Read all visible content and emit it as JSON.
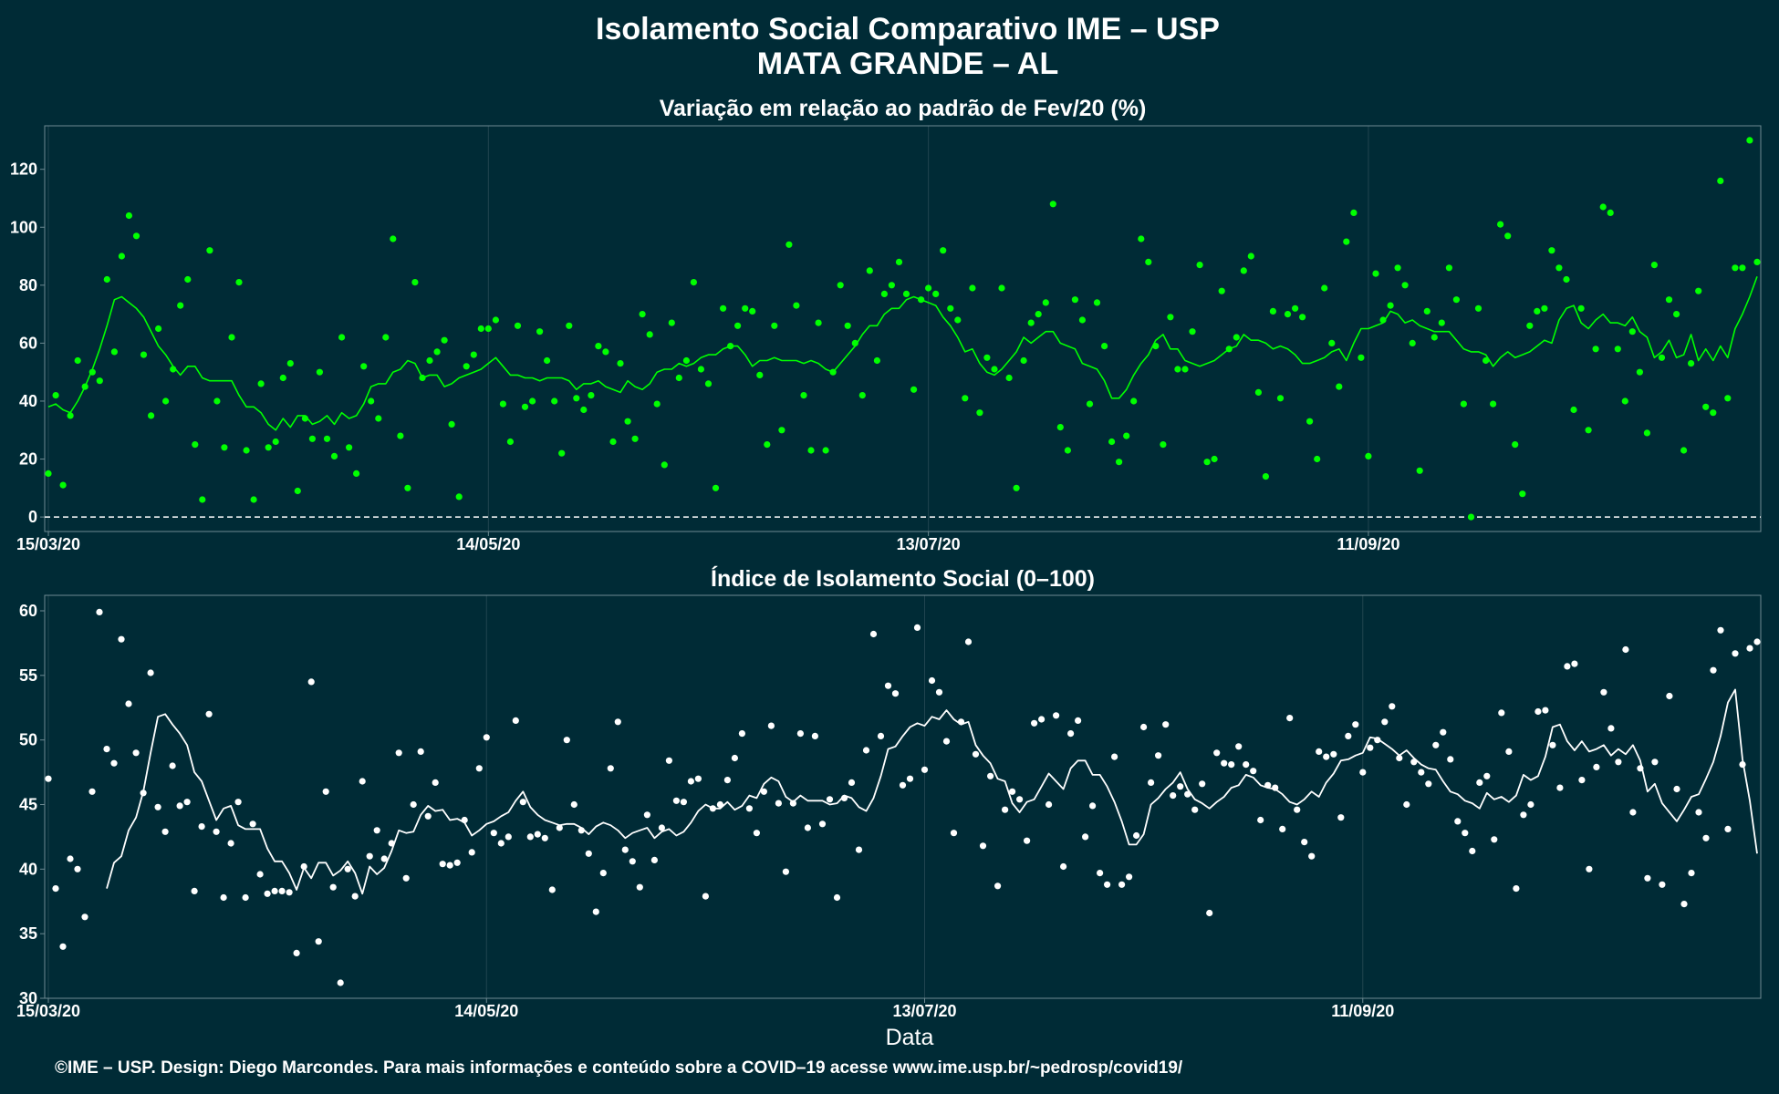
{
  "title": "Isolamento Social Comparativo IME – USP",
  "subtitle": "MATA GRANDE – AL",
  "footer": "©IME – USP. Design: Diego Marcondes. Para mais informações e conteúdo sobre a COVID–19 acesse www.ime.usp.br/~pedrosp/covid19/",
  "colors": {
    "background": "#002b36",
    "top_series": "#00ff00",
    "bottom_series": "#ffffff",
    "grid": "#214550",
    "frame": "#6e8a92"
  },
  "chart_data": [
    {
      "type": "scatter",
      "title": "Variação em relação ao padrão de Fev/20 (%)",
      "xlabel": "",
      "ylabel": "",
      "x_ticks": [
        "15/03/20",
        "14/05/20",
        "13/07/20",
        "11/09/20"
      ],
      "y_ticks": [
        0,
        20,
        40,
        60,
        80,
        100,
        120
      ],
      "ylim": [
        -5,
        135
      ],
      "reference_line": 0,
      "x_start": "2020-03-15",
      "series": [
        {
          "style": "points",
          "values": [
            15,
            42,
            11,
            35,
            54,
            45,
            50,
            47,
            82,
            57,
            90,
            104,
            97,
            56,
            35,
            65,
            40,
            51,
            73,
            82,
            25,
            6,
            92,
            40,
            24,
            62,
            81,
            23,
            6,
            46,
            24,
            26,
            48,
            53,
            9,
            34,
            27,
            50,
            27,
            21,
            62,
            24,
            15,
            52,
            40,
            34,
            62,
            96,
            28,
            10,
            81,
            48,
            54,
            57,
            61,
            32,
            7,
            52,
            56,
            65,
            65,
            68,
            39,
            26,
            66,
            38,
            40,
            64,
            54,
            40,
            22,
            66,
            41,
            37,
            42,
            59,
            57,
            26,
            53,
            33,
            27,
            70,
            63,
            39,
            18,
            67,
            48,
            54,
            81,
            51,
            46,
            10,
            72,
            59,
            66,
            72,
            71,
            49,
            25,
            66,
            30,
            94,
            73,
            42,
            23,
            67,
            23,
            50,
            80,
            66,
            60,
            42,
            85,
            54,
            77,
            80,
            88,
            77,
            44,
            75,
            79,
            77,
            92,
            72,
            68,
            41,
            79,
            36,
            55,
            51,
            79,
            48,
            10,
            54,
            67,
            70,
            74,
            108,
            31,
            23,
            75,
            68,
            39,
            74,
            59,
            26,
            19,
            28,
            40,
            96,
            88,
            59,
            25,
            69,
            51,
            51,
            64,
            87,
            19,
            20,
            78,
            58,
            62,
            85,
            90,
            43,
            14,
            71,
            41,
            70,
            72,
            69,
            33,
            20,
            79,
            60,
            45,
            95,
            105,
            55,
            21,
            84,
            68,
            73,
            86,
            80,
            60,
            16,
            71,
            62,
            67,
            86,
            75,
            39,
            0,
            72,
            54,
            39,
            101,
            97,
            25,
            8,
            66,
            71,
            72,
            92,
            86,
            82,
            37,
            72,
            30,
            58,
            107,
            105,
            58,
            40,
            64,
            50,
            29,
            87,
            55,
            75,
            70,
            23,
            53,
            78,
            38,
            36,
            116,
            41,
            86,
            86,
            130,
            88
          ],
          "point_gaps_after_index": []
        },
        {
          "style": "line",
          "values": [
            38,
            39,
            37,
            36,
            40,
            45,
            51,
            58,
            66,
            75,
            76,
            74,
            72,
            69,
            64,
            59,
            56,
            52,
            49,
            52,
            52,
            48,
            47,
            47,
            47,
            47,
            42,
            38,
            38,
            36,
            32,
            30,
            34,
            31,
            35,
            35,
            32,
            33,
            35,
            32,
            36,
            34,
            35,
            39,
            45,
            46,
            46,
            50,
            51,
            54,
            53,
            48,
            49,
            49,
            45,
            46,
            48,
            49,
            50,
            51,
            53,
            55,
            52,
            49,
            49,
            48,
            48,
            47,
            48,
            48,
            48,
            47,
            44,
            46,
            46,
            47,
            45,
            44,
            43,
            47,
            45,
            44,
            46,
            50,
            51,
            51,
            53,
            52,
            53,
            55,
            56,
            56,
            58,
            59,
            59,
            56,
            52,
            54,
            54,
            55,
            54,
            54,
            54,
            53,
            54,
            53,
            51,
            50,
            53,
            56,
            59,
            63,
            66,
            66,
            70,
            72,
            72,
            75,
            76,
            75,
            74,
            73,
            69,
            66,
            62,
            57,
            58,
            53,
            50,
            49,
            51,
            54,
            57,
            62,
            60,
            62,
            64,
            64,
            60,
            59,
            58,
            53,
            52,
            51,
            47,
            41,
            41,
            44,
            49,
            53,
            56,
            61,
            63,
            58,
            58,
            54,
            53,
            52,
            53,
            54,
            56,
            58,
            59,
            63,
            61,
            61,
            60,
            58,
            59,
            58,
            56,
            53,
            53,
            54,
            55,
            57,
            58,
            54,
            60,
            65,
            65,
            66,
            67,
            71,
            70,
            67,
            68,
            66,
            65,
            64,
            64,
            64,
            61,
            58,
            57,
            57,
            56,
            52,
            55,
            57,
            55,
            56,
            57,
            59,
            61,
            60,
            68,
            72,
            73,
            67,
            65,
            68,
            70,
            67,
            67,
            66,
            69,
            64,
            62,
            55,
            57,
            61,
            55,
            56,
            63,
            54,
            58,
            54,
            59,
            55,
            65,
            70,
            76,
            83
          ]
        }
      ]
    },
    {
      "type": "scatter",
      "title": "Índice de Isolamento Social (0–100)",
      "xlabel": "Data",
      "ylabel": "",
      "x_ticks": [
        "15/03/20",
        "14/05/20",
        "13/07/20",
        "11/09/20"
      ],
      "y_ticks": [
        30,
        35,
        40,
        45,
        50,
        55,
        60
      ],
      "ylim": [
        30,
        61.2
      ],
      "x_start": "2020-03-15",
      "series": [
        {
          "style": "points",
          "values": [
            47,
            38.5,
            34,
            40.8,
            40,
            36.3,
            46,
            59.9,
            49.3,
            48.2,
            57.8,
            52.8,
            49,
            45.9,
            55.2,
            44.8,
            42.9,
            48,
            44.9,
            45.2,
            38.3,
            43.3,
            52,
            42.9,
            37.8,
            42,
            45.2,
            37.8,
            43.5,
            39.6,
            38.1,
            38.3,
            38.3,
            38.2,
            33.5,
            40.2,
            54.5,
            34.4,
            46,
            38.6,
            31.2,
            40,
            37.9,
            46.8,
            41,
            43,
            40.8,
            42,
            49,
            39.3,
            45,
            49.1,
            44.1,
            46.7,
            40.4,
            40.3,
            40.5,
            43.8,
            41.3,
            47.8,
            50.2,
            42.8,
            42,
            42.5,
            51.5,
            45.2,
            42.5,
            42.7,
            42.4,
            38.4,
            43.2,
            50,
            45,
            43,
            41.2,
            36.7,
            39.7,
            47.8,
            51.4,
            41.5,
            40.6,
            38.6,
            44.2,
            40.7,
            43.2,
            48.4,
            45.3,
            45.2,
            46.8,
            47,
            37.9,
            44.7,
            45,
            46.9,
            48.6,
            50.5,
            44.7,
            42.8,
            46,
            51.1,
            45.1,
            39.8,
            45.1,
            50.5,
            43.2,
            50.3,
            43.5,
            45.4,
            37.8,
            45.5,
            46.7,
            41.5,
            49.2,
            58.2,
            50.3,
            54.2,
            53.6,
            46.5,
            47,
            58.7,
            47.7,
            54.6,
            53.7,
            49.9,
            42.8,
            51.4,
            57.6,
            48.9,
            41.8,
            47.2,
            38.7,
            44.6,
            46,
            45.4,
            42.2,
            51.3,
            51.6,
            45,
            51.9,
            40.2,
            50.5,
            51.5,
            42.5,
            44.9,
            39.7,
            38.8,
            48.7,
            38.8,
            39.4,
            42.6,
            51,
            46.7,
            48.8,
            51.2,
            45.7,
            46.4,
            45.8,
            44.6,
            46.6,
            36.6,
            49,
            48.2,
            48.1,
            49.5,
            48.1,
            47.6,
            43.8,
            46.5,
            46.3,
            43.1,
            51.7,
            44.6,
            42.1,
            41,
            49.1,
            48.7,
            48.9,
            44,
            50.3,
            51.2,
            47.5,
            49.4,
            50,
            51.4,
            52.6,
            48.6,
            45,
            48.3,
            47.5,
            46.6,
            49.6,
            50.6,
            48.5,
            43.7,
            42.8,
            41.4,
            46.7,
            47.2,
            42.3,
            52.1,
            49.1,
            38.5,
            44.2,
            45,
            52.2,
            52.3,
            49.6,
            46.3,
            55.7,
            55.9,
            46.9,
            40,
            47.9,
            53.7,
            50.9,
            48.3,
            57,
            44.4,
            47.8,
            39.3,
            48.3,
            38.8,
            53.4,
            46.2,
            37.3,
            39.7,
            44.4,
            42.4,
            55.4,
            58.5,
            43.1,
            56.7,
            48.1,
            57.1,
            57.6
          ],
          "point_gaps_after_index": []
        },
        {
          "style": "line",
          "values": [
            38.5,
            40.5,
            41,
            43,
            44,
            46,
            49,
            51.8,
            52,
            51.2,
            50.5,
            49.6,
            47.5,
            46.8,
            45.3,
            43.8,
            44.7,
            44.9,
            43.4,
            43.1,
            43.1,
            43.1,
            41.6,
            40.6,
            40.6,
            39.7,
            38.4,
            40.1,
            39.3,
            40.5,
            40.5,
            39.5,
            39.9,
            40.6,
            39.7,
            38.1,
            40.2,
            39.6,
            40.1,
            41.4,
            43,
            42.8,
            42.9,
            44.2,
            44.9,
            44.5,
            44.6,
            43.8,
            43.9,
            43.6,
            42.6,
            43,
            43.5,
            43.7,
            44.1,
            44.4,
            45.3,
            46,
            44.8,
            44.2,
            43.8,
            43.6,
            43.4,
            43.5,
            43.5,
            43.2,
            42.7,
            43.3,
            43.6,
            43.4,
            43,
            42.4,
            42.8,
            43,
            43.2,
            42.4,
            42.9,
            43.1,
            42.6,
            42.9,
            43.6,
            44.5,
            45,
            44.7,
            44.7,
            45.2,
            44.6,
            44.9,
            45.7,
            45.5,
            46.6,
            47.1,
            46.8,
            45.6,
            45.2,
            45.7,
            45.3,
            45.3,
            45.3,
            45,
            45.1,
            45.7,
            45.5,
            44.8,
            44.5,
            45.5,
            47.2,
            49.3,
            49.5,
            50.3,
            51,
            51.3,
            51.1,
            51.8,
            51.6,
            52.3,
            51.6,
            51.2,
            51.4,
            49.6,
            48.8,
            48.2,
            47,
            46.8,
            45.1,
            44.4,
            45.2,
            45.4,
            46.4,
            47.4,
            46.8,
            46.2,
            47.8,
            48.4,
            48.4,
            47.3,
            47.3,
            46.4,
            45.2,
            43.7,
            41.9,
            41.9,
            42.7,
            45,
            45.5,
            46.2,
            46.7,
            47.5,
            46.2,
            45.4,
            45.1,
            44.7,
            45.2,
            45.6,
            46.3,
            46.5,
            47.3,
            47.1,
            46.5,
            46.3,
            46.2,
            45.8,
            45.2,
            45,
            45.4,
            46,
            45.6,
            46.7,
            47.4,
            48.4,
            48.5,
            48.8,
            49,
            50.2,
            50.1,
            49.7,
            49.3,
            48.8,
            49.2,
            48.6,
            48.1,
            47.8,
            47.7,
            46.8,
            46,
            45.8,
            45.3,
            45.1,
            44.7,
            45.9,
            45.4,
            45.6,
            45.2,
            45.7,
            47.3,
            46.9,
            47.2,
            48.7,
            51,
            51.2,
            49.9,
            49.2,
            49.9,
            49.1,
            49.3,
            49.6,
            48.8,
            49.3,
            48.9,
            49.6,
            48.4,
            46,
            46.6,
            45.1,
            44.4,
            43.7,
            44.6,
            45.6,
            45.8,
            47,
            48.3,
            50.3,
            52.9,
            53.9,
            48.5,
            45.3,
            41.2
          ]
        }
      ]
    }
  ]
}
